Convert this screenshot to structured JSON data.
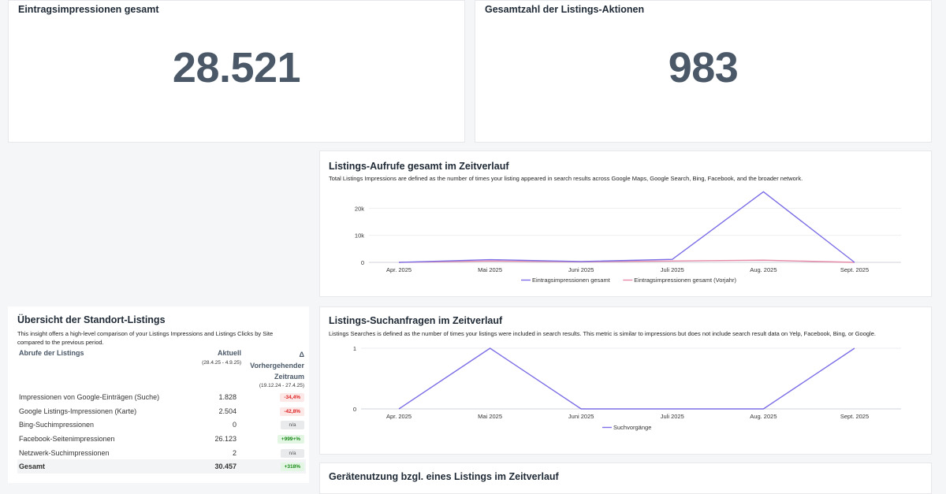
{
  "kpi_impressions": {
    "title": "Eintragsimpressionen gesamt",
    "value": "28.521"
  },
  "kpi_actions": {
    "title": "Gesamtzahl der Listings-Aktionen",
    "value": "983"
  },
  "views_chart": {
    "title": "Listings-Aufrufe gesamt im Zeitverlauf",
    "description": "Total Listings Impressions are defined as the number of times your listing appeared in search results across Google Maps, Google Search, Bing, Facebook, and the broader network.",
    "legend": [
      "Eintragsimpressionen gesamt",
      "Eintragsimpressionen gesamt (Vorjahr)"
    ],
    "colors": {
      "current": "#7b6ee6",
      "previous": "#e58aa8"
    }
  },
  "searches_chart": {
    "title": "Listings-Suchanfragen im Zeitverlauf",
    "description": "Listings Searches is defined as the number of times your listings were included in search results. This metric is similar to impressions but does not include search result data on Yelp, Facebook, Bing, or Google.",
    "legend": [
      "Suchvorgänge"
    ],
    "colors": {
      "current": "#7b6ee6"
    }
  },
  "chart_data": [
    {
      "type": "line",
      "title": "Listings-Aufrufe gesamt im Zeitverlauf",
      "categories": [
        "Apr. 2025",
        "Mai 2025",
        "Juni 2025",
        "Juli 2025",
        "Aug. 2025",
        "Sept. 2025"
      ],
      "series": [
        {
          "name": "Eintragsimpressionen gesamt",
          "values": [
            0,
            1000,
            300,
            1100,
            26100,
            0
          ]
        },
        {
          "name": "Eintragsimpressionen gesamt (Vorjahr)",
          "values": [
            0,
            500,
            200,
            500,
            800,
            0
          ]
        }
      ],
      "yticks": [
        0,
        10000,
        20000
      ],
      "ytick_labels": [
        "0",
        "10k",
        "20k"
      ],
      "ylim": [
        0,
        30000
      ],
      "grid": true,
      "legend_position": "bottom"
    },
    {
      "type": "line",
      "title": "Listings-Suchanfragen im Zeitverlauf",
      "categories": [
        "Apr. 2025",
        "Mai 2025",
        "Juni 2025",
        "Juli 2025",
        "Aug. 2025",
        "Sept. 2025"
      ],
      "series": [
        {
          "name": "Suchvorgänge",
          "values": [
            0,
            1,
            0,
            0,
            0,
            1
          ]
        }
      ],
      "yticks": [
        0,
        1
      ],
      "ytick_labels": [
        "0",
        "1"
      ],
      "ylim": [
        0,
        1
      ],
      "grid": true,
      "legend_position": "bottom"
    }
  ],
  "overview": {
    "title": "Übersicht der Standort-Listings",
    "description": "This insight offers a high-level comparison of your Listings Impressions and Listings Clicks by Site compared to the previous period.",
    "columns": {
      "label": "Abrufe der Listings",
      "current": "Aktuell",
      "current_range": "(28.4.25 - 4.9.25)",
      "delta": "Δ",
      "previous": "Vorhergehender Zeitraum",
      "previous_range": "(19.12.24 - 27.4.25)"
    },
    "rows": [
      {
        "label": "Impressionen von Google-Einträgen (Suche)",
        "value": "1.828",
        "delta": "-34,4%",
        "kind": "neg"
      },
      {
        "label": "Google Listings-Impressionen (Karte)",
        "value": "2.504",
        "delta": "-42,8%",
        "kind": "neg"
      },
      {
        "label": "Bing-Suchimpressionen",
        "value": "0",
        "delta": "n/a",
        "kind": "na"
      },
      {
        "label": "Facebook-Seitenimpressionen",
        "value": "26.123",
        "delta": "+999+%",
        "kind": "pos"
      },
      {
        "label": "Netzwerk-Suchimpressionen",
        "value": "2",
        "delta": "n/a",
        "kind": "na"
      }
    ],
    "total": {
      "label": "Gesamt",
      "value": "30.457",
      "delta": "+318%",
      "kind": "pos"
    }
  },
  "device_chart": {
    "title": "Gerätenutzung bzgl. eines Listings im Zeitverlauf"
  }
}
